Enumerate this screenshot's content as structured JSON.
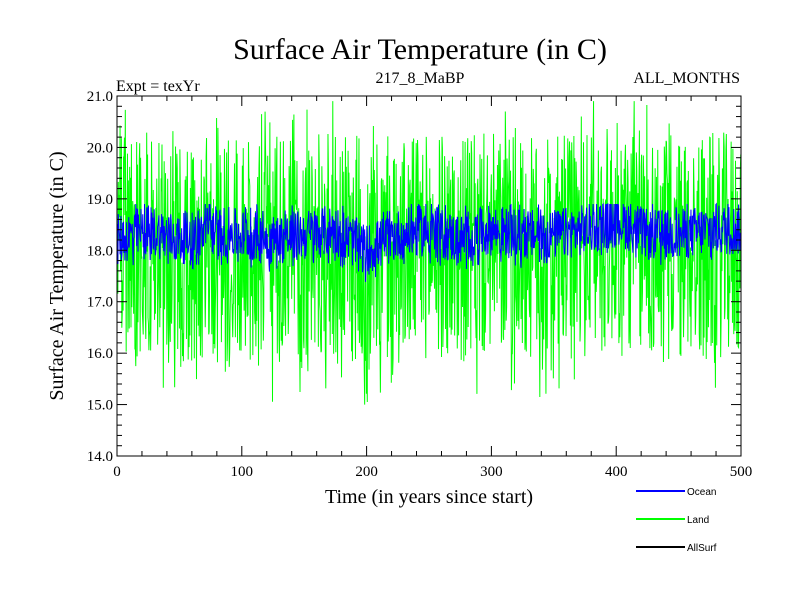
{
  "chart_data": {
    "type": "line",
    "title": "Surface Air Temperature (in C)",
    "experiment": "Expt = texYr",
    "subtitle": "217_8_MaBP",
    "period": "ALL_MONTHS",
    "xlabel": "Time (in years since start)",
    "ylabel": "Surface Air Temperature (in C)",
    "xlim": [
      0,
      500
    ],
    "ylim": [
      14.0,
      21.0
    ],
    "xticks": [
      0,
      100,
      200,
      300,
      400,
      500
    ],
    "yticks": [
      "14.0",
      "15.0",
      "16.0",
      "17.0",
      "18.0",
      "19.0",
      "20.0",
      "21.0"
    ],
    "legend_position": "bottom-right, below plot",
    "series": [
      {
        "name": "Land",
        "color": "#00ff00",
        "mean": 18.0,
        "typical_range": [
          15.8,
          20.2
        ],
        "extremes": [
          15.0,
          20.9
        ],
        "approx_points": {
          "x": [
            0,
            25,
            50,
            75,
            100,
            125,
            150,
            175,
            200,
            225,
            250,
            275,
            300,
            325,
            350,
            375,
            400,
            425,
            450,
            475,
            500
          ],
          "y": [
            18.0,
            18.1,
            17.9,
            18.0,
            18.0,
            17.9,
            18.0,
            18.1,
            17.8,
            18.0,
            18.1,
            18.0,
            18.1,
            18.0,
            18.0,
            18.1,
            18.3,
            18.1,
            18.0,
            18.1,
            18.1
          ]
        }
      },
      {
        "name": "Ocean",
        "color": "#0000ff",
        "mean": 18.3,
        "typical_range": [
          17.8,
          18.8
        ],
        "extremes": [
          17.3,
          18.9
        ],
        "approx_points": {
          "x": [
            0,
            25,
            50,
            75,
            100,
            125,
            150,
            175,
            200,
            225,
            250,
            275,
            300,
            325,
            350,
            375,
            400,
            425,
            450,
            475,
            500
          ],
          "y": [
            18.2,
            18.4,
            18.2,
            18.4,
            18.3,
            18.2,
            18.3,
            18.4,
            18.0,
            18.3,
            18.4,
            18.2,
            18.4,
            18.3,
            18.3,
            18.4,
            18.6,
            18.3,
            18.3,
            18.4,
            18.4
          ]
        }
      },
      {
        "name": "AllSurf",
        "color": "#000000"
      }
    ]
  }
}
